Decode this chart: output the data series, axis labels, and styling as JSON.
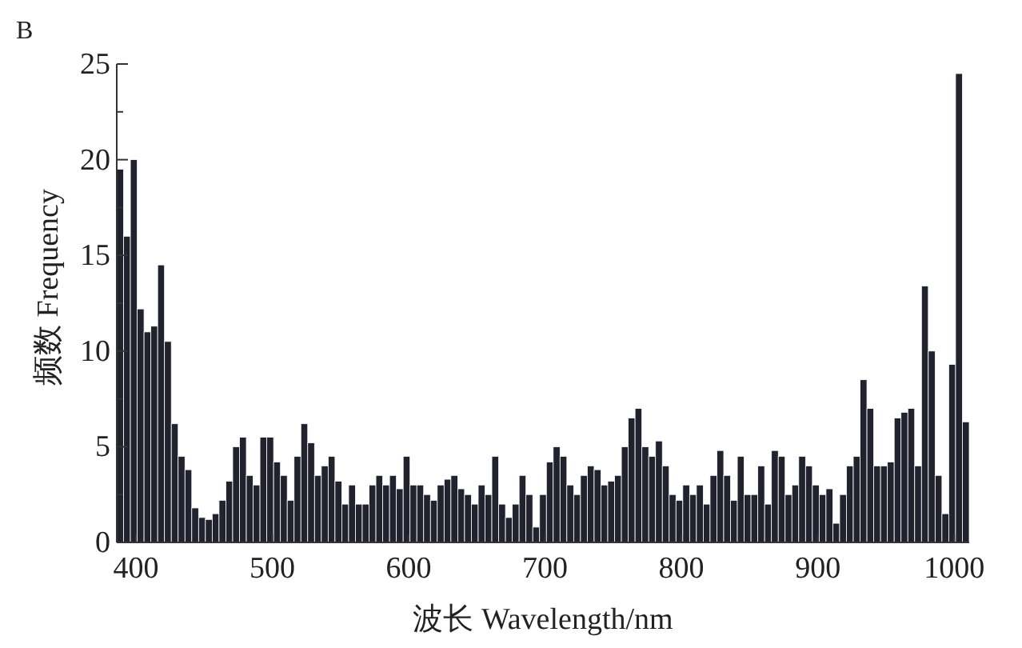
{
  "chart_data": {
    "type": "histogram",
    "title": "B",
    "xlabel": "波长 Wavelength/nm",
    "ylabel": "频数 Frequency",
    "color": "#22222e",
    "bins": [
      386,
      391,
      396,
      401,
      406,
      411,
      416,
      421,
      426,
      431,
      436,
      441,
      446,
      451,
      456,
      461,
      466,
      471,
      476,
      481,
      486,
      491,
      496,
      501,
      506,
      511,
      516,
      521,
      526,
      531,
      536,
      541,
      546,
      551,
      556,
      561,
      566,
      571,
      576,
      581,
      586,
      591,
      596,
      601,
      606,
      611,
      616,
      621,
      626,
      631,
      636,
      641,
      646,
      651,
      656,
      661,
      666,
      671,
      676,
      681,
      686,
      691,
      696,
      701,
      706,
      711,
      716,
      721,
      726,
      731,
      736,
      741,
      746,
      751,
      756,
      761,
      766,
      771,
      776,
      781,
      786,
      791,
      796,
      801,
      806,
      811,
      816,
      821,
      826,
      831,
      836,
      841,
      846,
      851,
      856,
      861,
      866,
      871,
      876,
      881,
      886,
      891,
      896,
      901,
      906,
      911,
      916,
      921,
      926,
      931,
      936,
      941,
      946,
      951,
      956,
      961,
      966,
      971,
      976,
      981,
      986,
      991,
      996,
      1001,
      1006,
      1011
    ],
    "values": [
      19.5,
      16,
      20,
      12.2,
      11,
      11.3,
      14.5,
      10.5,
      6.2,
      4.5,
      3.8,
      1.8,
      1.3,
      1.2,
      1.5,
      2.2,
      3.2,
      5,
      5.5,
      3.5,
      3,
      5.5,
      5.5,
      4.2,
      3.5,
      2.2,
      4.5,
      6.2,
      5.2,
      3.5,
      4,
      4.5,
      3.2,
      2,
      3,
      2,
      2,
      3,
      3.5,
      3,
      3.5,
      2.8,
      4.5,
      3,
      3,
      2.5,
      2.2,
      3,
      3.3,
      3.5,
      2.8,
      2.5,
      2,
      3,
      2.5,
      4.5,
      2,
      1.3,
      2,
      3.5,
      2.5,
      0.8,
      2.5,
      4.2,
      5,
      4.5,
      3,
      2.5,
      3.5,
      4,
      3.8,
      3,
      3.2,
      3.5,
      5,
      6.5,
      7,
      5,
      4.5,
      5.3,
      4,
      2.5,
      2.2,
      3,
      2.5,
      3,
      2,
      3.5,
      4.8,
      3.5,
      2.2,
      4.5,
      2.5,
      2.5,
      4,
      2,
      4.8,
      4.5,
      2.5,
      3,
      4.5,
      4,
      3,
      2.5,
      2.8,
      1.0,
      2.5,
      4,
      4.5,
      8.5,
      7,
      4,
      4,
      4.2,
      6.5,
      6.8,
      7,
      4,
      13.4,
      10,
      3.5,
      1.5,
      9.3,
      24.5,
      6.3
    ],
    "xlim": [
      386,
      1011
    ],
    "ylim": [
      0,
      25
    ],
    "xticks": [
      400,
      500,
      600,
      700,
      800,
      900,
      1000
    ],
    "yticks": [
      0,
      {
        "value": 2.5,
        "label": null
      },
      5,
      {
        "value": 7.5,
        "label": null
      },
      10,
      {
        "value": 12.5,
        "label": null
      },
      15,
      {
        "value": 17.5,
        "label": null
      },
      20,
      {
        "value": 22.5,
        "label": null
      },
      25
    ]
  }
}
